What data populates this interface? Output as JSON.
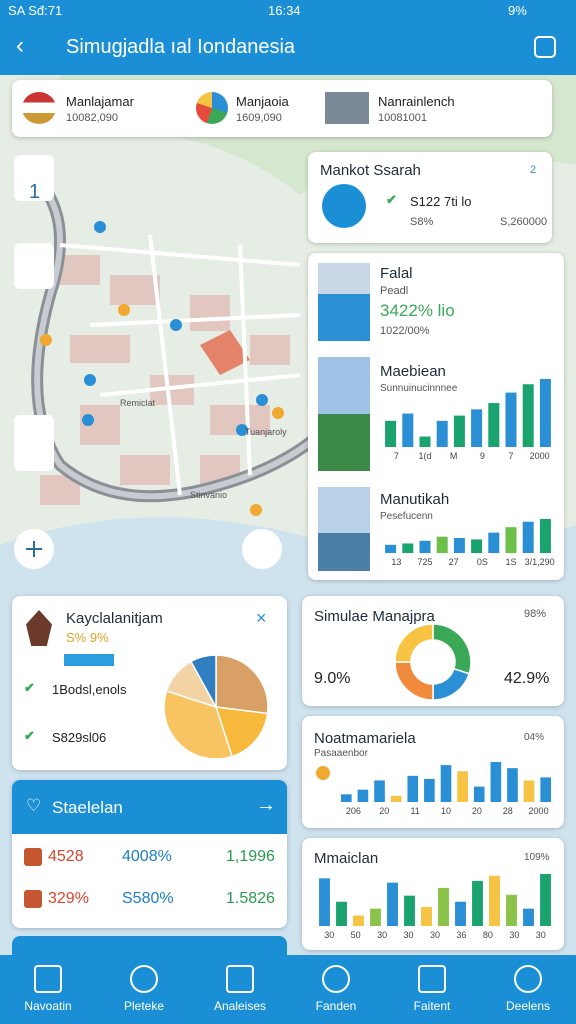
{
  "status_bar": {
    "carrier": "SA Sđ:71",
    "time": "16:34",
    "battery": "9%"
  },
  "header": {
    "title": "Simugjadla ıal Iondanesia"
  },
  "top_strip": [
    {
      "name": "Manlajamar",
      "value": "10082,090"
    },
    {
      "name": "Manjaoia",
      "value": "1609,090"
    },
    {
      "name": "Nanrainlench",
      "value": "10081001"
    }
  ],
  "map": {
    "labels": [
      "Remiclat",
      "Tuanjaroly",
      "Stinvanio"
    ],
    "control": "1"
  },
  "market_card": {
    "title": "Mankot Ssarah",
    "badge": "2",
    "line1": "S122 7ti lo",
    "line2": "S8%",
    "line3": "S,260000"
  },
  "falal_card": {
    "title": "Falal",
    "subtitle": "Peadl",
    "value": "3422% lio",
    "sub": "1022/00%"
  },
  "maebiean_card": {
    "title": "Maebiean",
    "subtitle": "Sunnuinucinnnee",
    "axis_labels": [
      "7",
      "1(d",
      "M",
      "9",
      "7",
      "2000"
    ],
    "values": [
      25,
      32,
      10,
      25,
      30,
      36,
      42,
      52,
      60,
      65
    ],
    "colors": [
      "#1aa36f",
      "#2b8fd6"
    ]
  },
  "manutikah_card": {
    "title": "Manutikah",
    "subtitle": "Pesefucenn",
    "axis_labels": [
      "13",
      "725",
      "27",
      "0S",
      "1S",
      "3/1,290"
    ],
    "values": [
      12,
      14,
      18,
      24,
      22,
      20,
      30,
      38,
      46,
      50
    ],
    "colors": [
      "#2b8fd6",
      "#1aa36f",
      "#2b8fd6",
      "#6cc04a"
    ]
  },
  "pie_card": {
    "title": "Kayclalanitjam",
    "subtitle": "S% 9%",
    "items": [
      "1Bodsl,enols",
      "S829sl06"
    ],
    "values": [
      27,
      18,
      35,
      12,
      8
    ],
    "colors": [
      "#d9a066",
      "#f6b93b",
      "#f8c462",
      "#f3d3a4",
      "#2f7fc1"
    ]
  },
  "donut_card": {
    "title": "Simulae Manajpra",
    "badge": "98%",
    "left": "9.0%",
    "right": "42.9%",
    "values": [
      30,
      20,
      25,
      25
    ],
    "colors": [
      "#3aa856",
      "#2b8fd6",
      "#f08a3c",
      "#f6c343"
    ]
  },
  "stat_card": {
    "title": "Staelelan",
    "rows": [
      [
        "4528",
        "4008%",
        "1,1996"
      ],
      [
        "329%",
        "S580%",
        "1.5826"
      ]
    ]
  },
  "noat_card": {
    "title": "Noatmamariela",
    "subtitle": "Pasaaenbor",
    "badge": "04%",
    "axis_labels": [
      "206",
      "20",
      "11",
      "10",
      "20",
      "28",
      "2000"
    ],
    "values": [
      10,
      16,
      28,
      8,
      34,
      30,
      48,
      40,
      20,
      52,
      44,
      28,
      32
    ],
    "colors": [
      "#2b8fd6",
      "#2b8fd6",
      "#2b8fd6",
      "#f6c343"
    ]
  },
  "mmaiclan_card": {
    "title": "Mmaiclan",
    "badge": "109%",
    "axis_labels": [
      "30",
      "50",
      "30",
      "30",
      "30",
      "36",
      "80",
      "30",
      "30"
    ],
    "values": [
      55,
      28,
      12,
      20,
      50,
      35,
      22,
      44,
      28,
      52,
      58,
      36,
      20,
      60
    ],
    "colors": [
      "#2b8fd6",
      "#1aa36f",
      "#f6c343",
      "#8bc34a"
    ]
  },
  "nav": [
    "Navoatin",
    "Pleteke",
    "Analeises",
    "Fanden",
    "Faitent",
    "Deelens"
  ]
}
